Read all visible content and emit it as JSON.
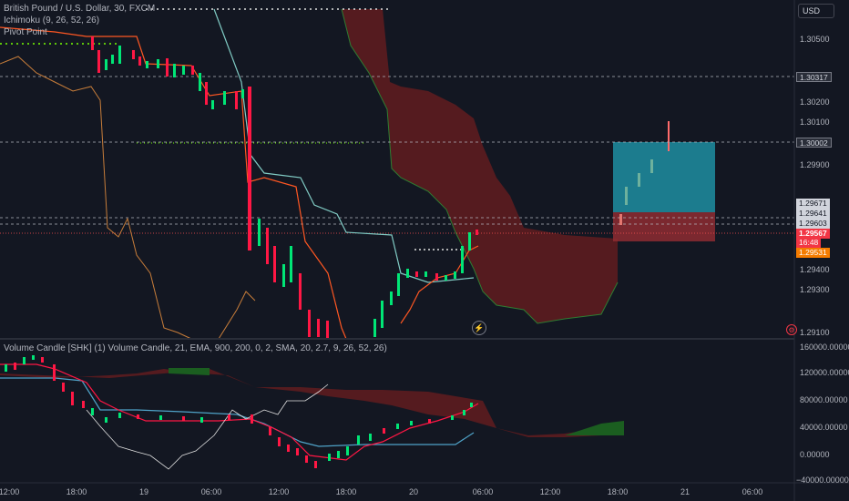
{
  "header": {
    "symbol_title": "British Pound / U.S. Dollar, 30, FXCM",
    "indicators": [
      "Ichimoku (9, 26, 52, 26)",
      "Pivot Point"
    ],
    "currency_button": "USD"
  },
  "price_axis": {
    "labels": [
      "1.30500",
      "1.30200",
      "1.30100",
      "1.29900",
      "1.29400",
      "1.29300",
      "1.29100"
    ]
  },
  "price_tags": [
    {
      "text": "1.30317",
      "style": "gray"
    },
    {
      "text": "1.30002",
      "style": "gray"
    },
    {
      "text": "1.29671",
      "style": "light"
    },
    {
      "text": "1.29641",
      "style": "light"
    },
    {
      "text": "1.29603",
      "style": "light"
    },
    {
      "text": "1.29567",
      "style": "red"
    },
    {
      "text": "16:48",
      "style": "red"
    },
    {
      "text": "1.29531",
      "style": "orange"
    }
  ],
  "volume_panel": {
    "title": "Volume Candle [SHK] (1) Volume Candle, 21, EMA, 900, 200, 0, 2, SMA, 20, 2.7, 9, 26, 52, 26)",
    "axis_labels": [
      "160000.00000",
      "120000.00000",
      "80000.00000",
      "40000.00000",
      "0.00000",
      "−40000.00000"
    ]
  },
  "time_axis": {
    "labels": [
      "12:00",
      "18:00",
      "19",
      "06:00",
      "12:00",
      "18:00",
      "20",
      "06:00",
      "12:00",
      "18:00",
      "21",
      "06:00"
    ]
  },
  "colors": {
    "background": "#131722",
    "bull": "#00e676",
    "bear": "#ff1744",
    "cloud_bear": "#5d1c1f",
    "cloud_bull": "#1b5e20",
    "target_box": "#2196a8",
    "stop_box": "#8e2b31"
  },
  "icons": [
    "lightning-icon",
    "gear-icon"
  ]
}
